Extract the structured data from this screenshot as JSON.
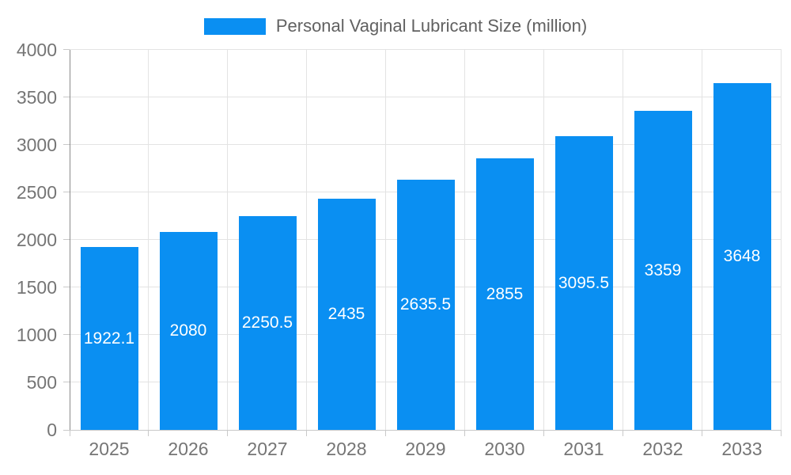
{
  "chart_data": {
    "type": "bar",
    "title": "Personal Vaginal Lubricant Size (million)",
    "legend_position": "top",
    "categories": [
      "2025",
      "2026",
      "2027",
      "2028",
      "2029",
      "2030",
      "2031",
      "2032",
      "2033"
    ],
    "series": [
      {
        "name": "Personal Vaginal Lubricant Size (million)",
        "values": [
          1922.1,
          2080,
          2250.5,
          2435,
          2635.5,
          2855,
          3095.5,
          3359,
          3648
        ],
        "value_labels": [
          "1922.1",
          "2080",
          "2250.5",
          "2435",
          "2635.5",
          "2855",
          "3095.5",
          "3359",
          "3648"
        ]
      }
    ],
    "bar_label_position": "inside-middle",
    "xlabel": "",
    "ylabel": "",
    "ylim": [
      0,
      4000
    ],
    "ytick_interval": 500,
    "yticks": [
      "0",
      "500",
      "1000",
      "1500",
      "2000",
      "2500",
      "3000",
      "3500",
      "4000"
    ],
    "grid": true
  },
  "colors": {
    "bar": "#0a8ff2",
    "bar_label": "#ffffff",
    "axis_text": "#757575",
    "legend_text": "#616161",
    "gridline": "#e3e3e3",
    "y_axis_line": "#8a8a8a",
    "x_axis_line": "#c9c9c9",
    "background": "#ffffff"
  }
}
